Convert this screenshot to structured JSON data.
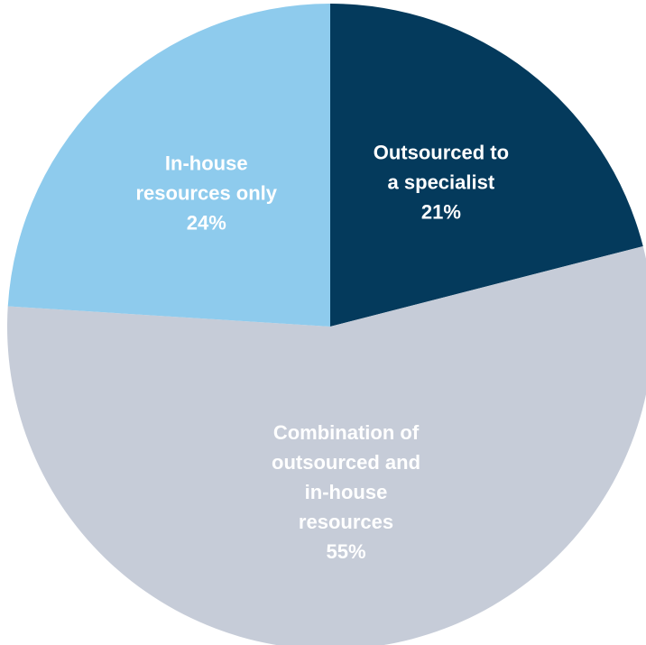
{
  "chart_data": {
    "type": "pie",
    "slices": [
      {
        "label_lines": [
          "Outsourced to",
          "a specialist"
        ],
        "value": 21,
        "value_label": "21%",
        "color": "#043a5c"
      },
      {
        "label_lines": [
          "Combination of",
          "outsourced and",
          "in-house",
          "resources"
        ],
        "value": 55,
        "value_label": "55%",
        "color": "#c6ccd8"
      },
      {
        "label_lines": [
          "In-house",
          "resources only"
        ],
        "value": 24,
        "value_label": "24%",
        "color": "#8ecbed"
      }
    ],
    "start": "top (12 o'clock)",
    "direction": "clockwise",
    "legend": "none (labels inside slices)"
  }
}
